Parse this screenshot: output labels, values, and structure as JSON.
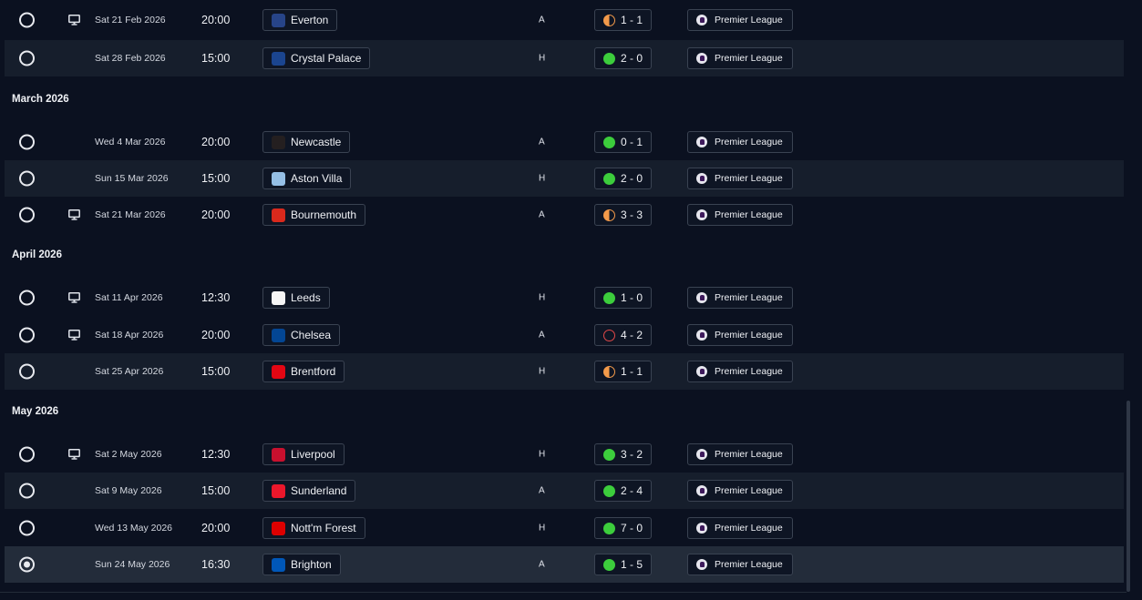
{
  "fixtures": [
    {
      "kind": "match",
      "date": "Sat 21 Feb 2026",
      "time": "20:00",
      "opponent": "Everton",
      "crest": "everton-crest",
      "crest_color": "#274488",
      "venue": "A",
      "result": "1 - 1",
      "outcome": "draw",
      "competition": "Premier League",
      "tv": true,
      "selected": false,
      "top": 2,
      "alt": false
    },
    {
      "kind": "match",
      "date": "Sat 28 Feb 2026",
      "time": "15:00",
      "opponent": "Crystal Palace",
      "crest": "crystal-palace-crest",
      "crest_color": "#1b458f",
      "venue": "H",
      "result": "2 - 0",
      "outcome": "win",
      "competition": "Premier League",
      "tv": false,
      "selected": false,
      "top": 44,
      "alt": true
    },
    {
      "kind": "month",
      "label": "March 2026"
    },
    {
      "kind": "match",
      "date": "Wed 4 Mar 2026",
      "time": "20:00",
      "opponent": "Newcastle",
      "crest": "newcastle-crest",
      "crest_color": "#241f20",
      "venue": "A",
      "result": "0 - 1",
      "outcome": "win",
      "competition": "Premier League",
      "tv": false,
      "selected": false,
      "alt": false
    },
    {
      "kind": "match",
      "date": "Sun 15 Mar 2026",
      "time": "15:00",
      "opponent": "Aston Villa",
      "crest": "aston-villa-crest",
      "crest_color": "#95bfe5",
      "venue": "H",
      "result": "2 - 0",
      "outcome": "win",
      "competition": "Premier League",
      "tv": false,
      "selected": false,
      "alt": true
    },
    {
      "kind": "match",
      "date": "Sat 21 Mar 2026",
      "time": "20:00",
      "opponent": "Bournemouth",
      "crest": "bournemouth-crest",
      "crest_color": "#da291c",
      "venue": "A",
      "result": "3 - 3",
      "outcome": "draw",
      "competition": "Premier League",
      "tv": true,
      "selected": false,
      "alt": false
    },
    {
      "kind": "month",
      "label": "April 2026"
    },
    {
      "kind": "match",
      "date": "Sat 11 Apr 2026",
      "time": "12:30",
      "opponent": "Leeds",
      "crest": "leeds-crest",
      "crest_color": "#f5f5f5",
      "venue": "H",
      "result": "1 - 0",
      "outcome": "win",
      "competition": "Premier League",
      "tv": true,
      "selected": false,
      "alt": false
    },
    {
      "kind": "match",
      "date": "Sat 18 Apr 2026",
      "time": "20:00",
      "opponent": "Chelsea",
      "crest": "chelsea-crest",
      "crest_color": "#034694",
      "venue": "A",
      "result": "4 - 2",
      "outcome": "loss",
      "competition": "Premier League",
      "tv": true,
      "selected": false,
      "alt": false
    },
    {
      "kind": "match",
      "date": "Sat 25 Apr 2026",
      "time": "15:00",
      "opponent": "Brentford",
      "crest": "brentford-crest",
      "crest_color": "#e30613",
      "venue": "H",
      "result": "1 - 1",
      "outcome": "draw",
      "competition": "Premier League",
      "tv": false,
      "selected": false,
      "alt": true
    },
    {
      "kind": "month",
      "label": "May 2026"
    },
    {
      "kind": "match",
      "date": "Sat 2 May 2026",
      "time": "12:30",
      "opponent": "Liverpool",
      "crest": "liverpool-crest",
      "crest_color": "#c8102e",
      "venue": "H",
      "result": "3 - 2",
      "outcome": "win",
      "competition": "Premier League",
      "tv": true,
      "selected": false,
      "alt": false
    },
    {
      "kind": "match",
      "date": "Sat 9 May 2026",
      "time": "15:00",
      "opponent": "Sunderland",
      "crest": "sunderland-crest",
      "crest_color": "#eb172b",
      "venue": "A",
      "result": "2 - 4",
      "outcome": "win",
      "competition": "Premier League",
      "tv": false,
      "selected": false,
      "alt": true
    },
    {
      "kind": "match",
      "date": "Wed 13 May 2026",
      "time": "20:00",
      "opponent": "Nott'm Forest",
      "crest": "nottm-forest-crest",
      "crest_color": "#dd0000",
      "venue": "H",
      "result": "7 - 0",
      "outcome": "win",
      "competition": "Premier League",
      "tv": false,
      "selected": false,
      "alt": false
    },
    {
      "kind": "match",
      "date": "Sun 24 May 2026",
      "time": "16:30",
      "opponent": "Brighton",
      "crest": "brighton-crest",
      "crest_color": "#0057b8",
      "venue": "A",
      "result": "1 - 5",
      "outcome": "win",
      "competition": "Premier League",
      "tv": false,
      "selected": true,
      "alt": false
    }
  ],
  "colors": {
    "background": "#0b1120",
    "alt_row": "#161e2c",
    "selected_row": "#232c3a",
    "win": "#3ccd3c",
    "draw": "#f39a4a",
    "loss": "#e04848"
  }
}
